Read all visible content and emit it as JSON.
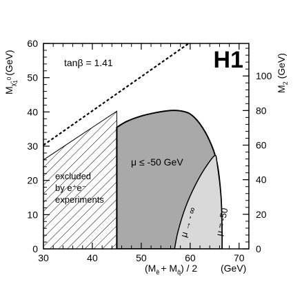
{
  "chart_data": {
    "type": "area",
    "watermark": "H1",
    "annotation_tanbeta": "tanβ = 1.41",
    "x_axis": {
      "label": "(M",
      "label_full": "(Mẽ + Mq̃) / 2",
      "unit": "(GeV)",
      "range": [
        30,
        72
      ],
      "ticks": [
        30,
        40,
        50,
        60,
        70
      ]
    },
    "y_axis_left": {
      "label": "M",
      "label_full": "M χ̃₁⁰ (GeV)",
      "range": [
        0,
        60
      ],
      "ticks": [
        0,
        10,
        20,
        30,
        40,
        50,
        60
      ]
    },
    "y_axis_right": {
      "label": "M",
      "label_full": "M₂ (GeV)",
      "ticks": [
        0,
        20,
        40,
        60,
        80,
        100
      ],
      "left_equivalent": [
        0,
        10.1,
        20.2,
        30.3,
        40.4,
        50.5
      ]
    },
    "regions": [
      {
        "name": "excluded by e⁺e⁻ experiments",
        "label_lines": [
          "excluded",
          "by e⁺e⁻",
          "experiments"
        ],
        "style": "hatched",
        "points": [
          [
            30,
            26
          ],
          [
            45,
            40.2
          ],
          [
            45,
            0
          ],
          [
            30,
            0
          ]
        ]
      },
      {
        "name": "μ ≤ -50 GeV",
        "label": "μ ≤ -50 GeV",
        "style": "dark-grey",
        "points": [
          [
            45,
            35.5
          ],
          [
            47,
            37.2
          ],
          [
            50,
            38.8
          ],
          [
            53,
            39.8
          ],
          [
            56,
            40.4
          ],
          [
            58,
            40.3
          ],
          [
            60,
            39.4
          ],
          [
            62,
            36.5
          ],
          [
            64,
            31.5
          ],
          [
            65.5,
            25
          ],
          [
            66.3,
            15
          ],
          [
            66.5,
            5
          ],
          [
            66.5,
            0
          ],
          [
            45,
            0
          ]
        ]
      },
      {
        "name": "μ between -∞ and -50",
        "label_curve_1": "μ → - ∞",
        "label_curve_2": "μ = -50",
        "style": "light-grey",
        "points": [
          [
            56.8,
            0
          ],
          [
            57.5,
            5
          ],
          [
            59,
            12
          ],
          [
            61,
            18.5
          ],
          [
            63,
            23.5
          ],
          [
            65,
            27.2
          ],
          [
            65.5,
            25
          ],
          [
            66.3,
            15
          ],
          [
            66.5,
            5
          ],
          [
            66.5,
            0
          ]
        ]
      }
    ],
    "dashed_line": {
      "name": "dashed diagonal",
      "points": [
        [
          30,
          30.3
        ],
        [
          35,
          35.3
        ],
        [
          40,
          40.3
        ],
        [
          45,
          45.3
        ],
        [
          50,
          50.3
        ],
        [
          55,
          55.3
        ],
        [
          60,
          60.3
        ]
      ]
    },
    "x_label_unit_spacer": "",
    "y_label_unit": "(GeV)",
    "y_label_sub": "χ̃",
    "y_label_sub2": "1",
    "y_label_sup": "0",
    "right_label_sub": "2",
    "right_label_unit": "(GeV)",
    "x_label_e_sub": "ẽ",
    "x_label_plus": "+ M",
    "x_label_q_sub": "q̃",
    "x_label_tail": ") / 2"
  }
}
